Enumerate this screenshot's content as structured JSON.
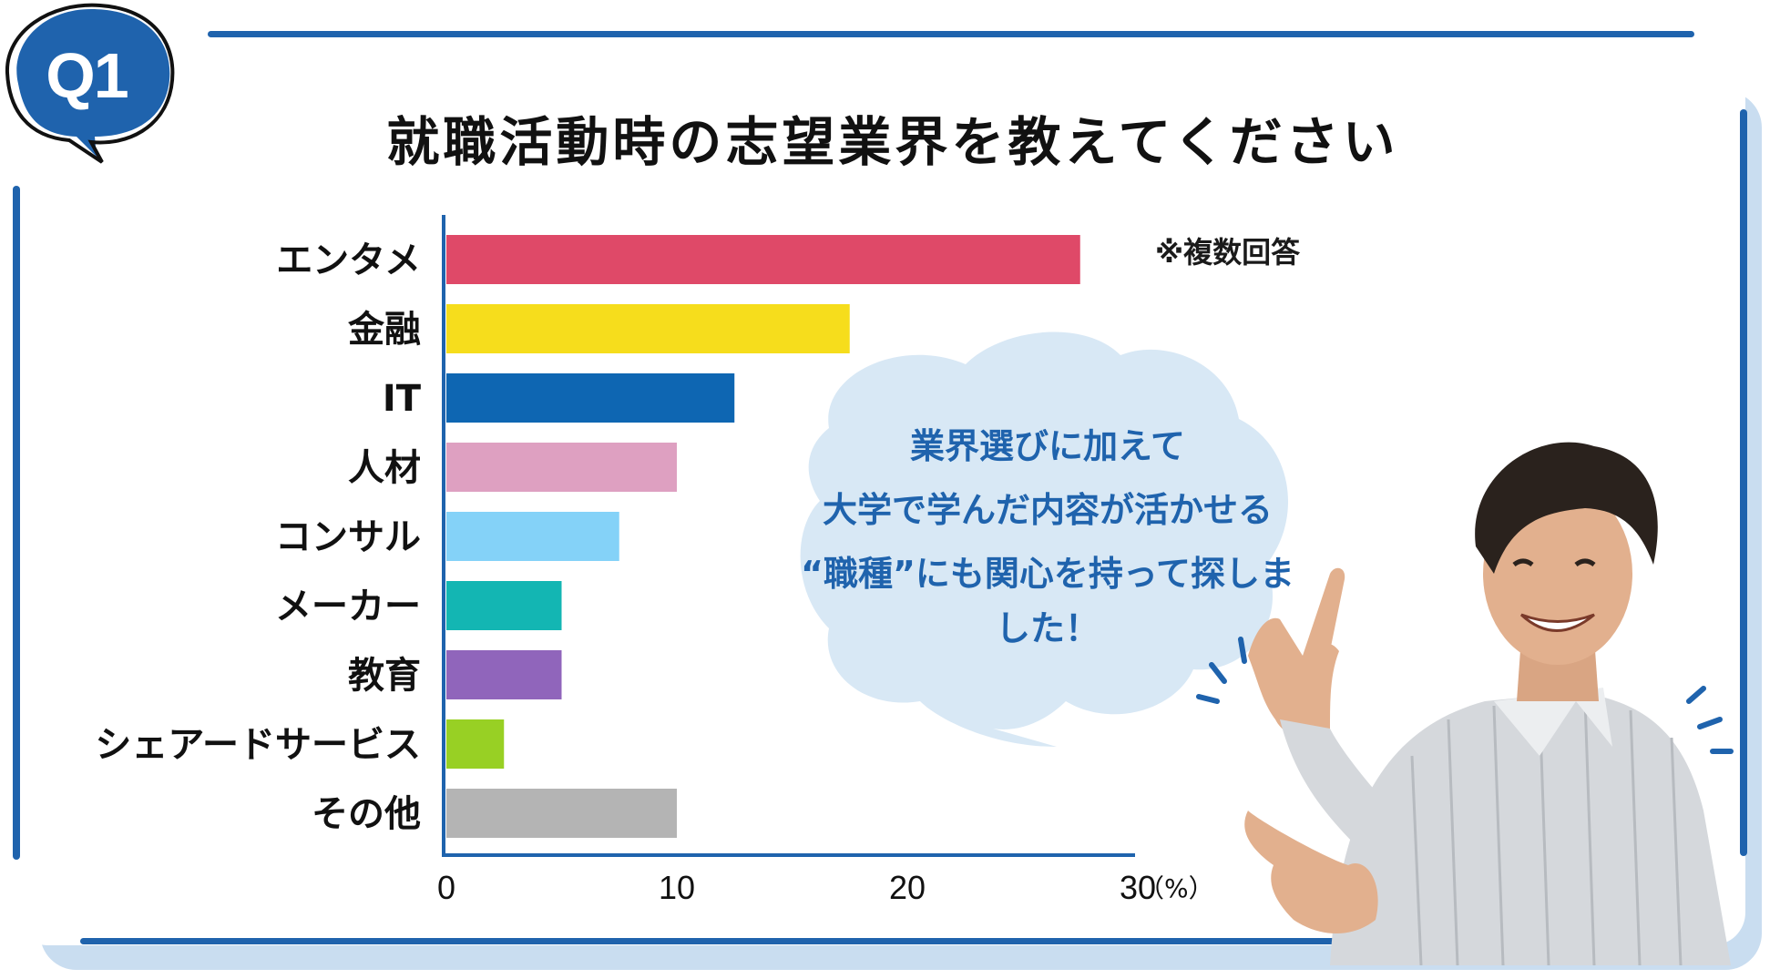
{
  "badge": {
    "text": "Q1",
    "color": "#1f63ad"
  },
  "title": "就職活動時の志望業界を教えてください",
  "note": "※複数回答",
  "bubble": {
    "lines": [
      "業界選びに加えて",
      "大学で学んだ内容が活かせる",
      "“職種”にも関心を持って探しました！"
    ],
    "fill": "#d8e8f5",
    "text_color": "#1f63ad"
  },
  "accent_color": "#1f63ad",
  "chart_data": {
    "type": "bar",
    "orientation": "horizontal",
    "categories": [
      "エンタメ",
      "金融",
      "IT",
      "人材",
      "コンサル",
      "メーカー",
      "教育",
      "シェアードサービス",
      "その他"
    ],
    "values": [
      27.5,
      17.5,
      12.5,
      10,
      7.5,
      5,
      5,
      2.5,
      10
    ],
    "colors": [
      "#df4968",
      "#f6dd1c",
      "#0e66b2",
      "#dea0c1",
      "#84d2f8",
      "#13b6b3",
      "#9065bb",
      "#98d024",
      "#b4b4b4"
    ],
    "x_ticks": [
      "0",
      "10",
      "20",
      "30"
    ],
    "x_unit": "（%）",
    "xlim": [
      0,
      30
    ],
    "grid": false,
    "legend": "none",
    "title": "",
    "xlabel": "",
    "ylabel": ""
  }
}
